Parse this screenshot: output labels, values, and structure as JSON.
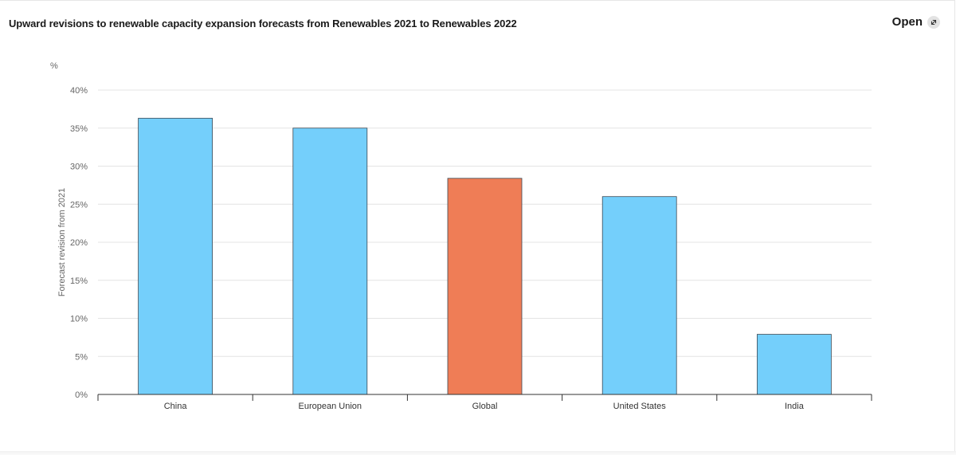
{
  "header": {
    "title": "Upward revisions to renewable capacity expansion forecasts from Renewables 2021 to Renewables 2022",
    "open_label": "Open",
    "open_icon": "external-arrow-icon"
  },
  "colors": {
    "bar_default": "#74cffb",
    "bar_highlight": "#ef7d56",
    "bar_stroke": "#3d4a55",
    "grid": "#e4e4e4",
    "axis": "#333333",
    "tick_text": "#666666"
  },
  "chart_data": {
    "type": "bar",
    "unit_label": "%",
    "ylabel": "Forecast revision from 2021",
    "xlabel": "",
    "categories": [
      "China",
      "European Union",
      "Global",
      "United States",
      "India"
    ],
    "values": [
      36.3,
      35.0,
      28.4,
      26.0,
      7.9
    ],
    "highlight_category": "Global",
    "ylim": [
      0,
      40
    ],
    "yticks": [
      0,
      5,
      10,
      15,
      20,
      25,
      30,
      35,
      40
    ],
    "ytick_labels": [
      "0%",
      "5%",
      "10%",
      "15%",
      "20%",
      "25%",
      "30%",
      "35%",
      "40%"
    ],
    "grid": true,
    "legend": "none"
  }
}
